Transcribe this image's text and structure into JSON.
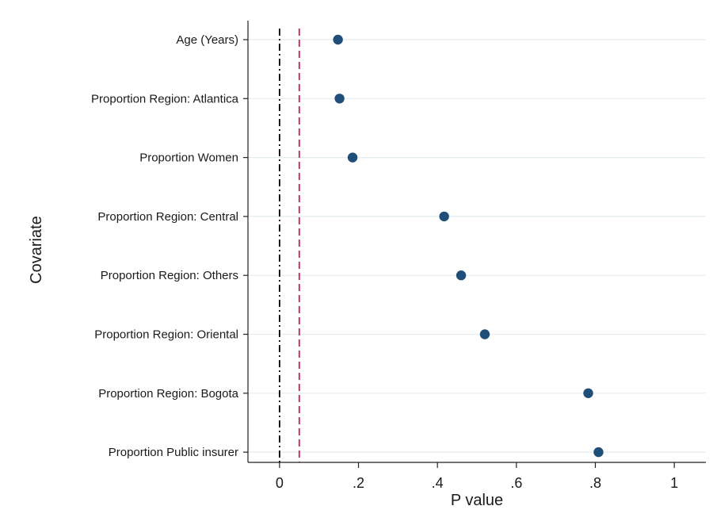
{
  "chart_data": {
    "type": "scatter",
    "title": "",
    "xlabel": "P value",
    "ylabel": "Covariate",
    "xlim": [
      -0.08,
      1.08
    ],
    "xticks": [
      0,
      0.2,
      0.4,
      0.6,
      0.8,
      1
    ],
    "xtick_labels": [
      "0",
      ".2",
      ".4",
      ".6",
      ".8",
      "1"
    ],
    "grid": "horizontal",
    "reference_lines": [
      {
        "x": 0,
        "color": "#000000",
        "style": "dash-dot"
      },
      {
        "x": 0.05,
        "color": "#d11a4a",
        "style": "dashed"
      }
    ],
    "marker_color": "#1f4e79",
    "categories": [
      "Age (Years)",
      "Proportion Region: Atlantica",
      "Proportion Women",
      "Proportion Region: Central",
      "Proportion Region: Others",
      "Proportion Region: Oriental",
      "Proportion Region: Bogota",
      "Proportion Public insurer"
    ],
    "values": [
      0.148,
      0.152,
      0.185,
      0.417,
      0.46,
      0.52,
      0.782,
      0.808
    ]
  }
}
